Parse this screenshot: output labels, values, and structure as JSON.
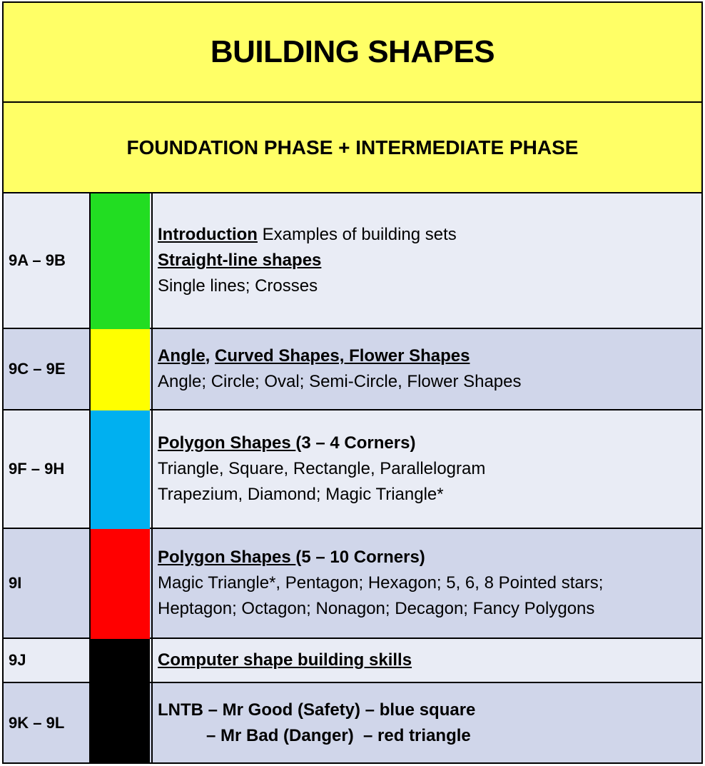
{
  "title": "BUILDING SHAPES",
  "subtitle": "FOUNDATION PHASE + INTERMEDIATE PHASE",
  "colors": {
    "banner": "#ffff66",
    "green": "#22dd22",
    "yellow": "#ffff00",
    "blue": "#00b0f0",
    "red": "#ff0000",
    "black": "#000000"
  },
  "rows": [
    {
      "code": "9A – 9B",
      "heading_a": "Introduction",
      "heading_a_rest": " Examples of building sets",
      "heading_b": "Straight-line shapes",
      "line1": "Single lines; Crosses"
    },
    {
      "code": "9C – 9E",
      "heading_a": "Angle",
      "heading_sep": ", ",
      "heading_b": "Curved Shapes, Flower Shapes",
      "line1": "Angle; Circle; Oval; Semi-Circle, Flower Shapes"
    },
    {
      "code": "9F – 9H",
      "heading_a": "Polygon Shapes ",
      "heading_a_rest": "(3 – 4 Corners)",
      "line1": "Triangle, Square, Rectangle, Parallelogram",
      "line2": "Trapezium, Diamond; Magic Triangle*"
    },
    {
      "code": "9I",
      "heading_a": "Polygon Shapes ",
      "heading_a_rest": "(5 – 10 Corners)",
      "line1": "Magic Triangle*, Pentagon; Hexagon; 5, 6, 8 Pointed stars;",
      "line2": "Heptagon; Octagon; Nonagon; Decagon; Fancy Polygons"
    },
    {
      "code": "9J",
      "heading_a": "Computer shape building skills"
    },
    {
      "code": "9K – 9L",
      "line1": "LNTB – Mr Good (Safety) – blue square",
      "line2": "– Mr Bad (Danger)  – red triangle"
    }
  ]
}
